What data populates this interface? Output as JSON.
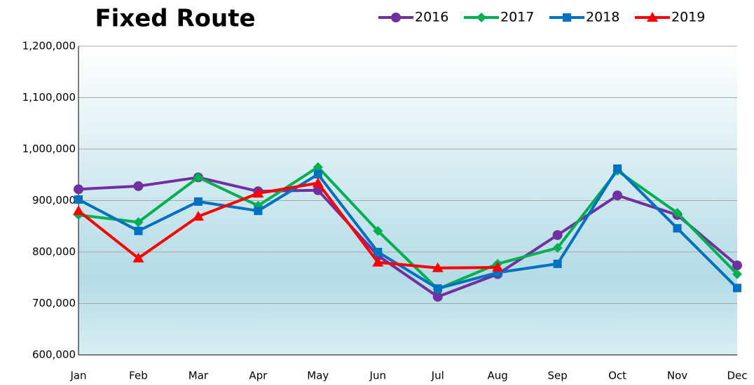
{
  "chart_data": {
    "type": "line",
    "title": "Fixed Route",
    "categories": [
      "Jan",
      "Feb",
      "Mar",
      "Apr",
      "May",
      "Jun",
      "Jul",
      "Aug",
      "Sep",
      "Oct",
      "Nov",
      "Dec"
    ],
    "series": [
      {
        "name": "2016",
        "color": "#7030a0",
        "marker": "circle",
        "values": [
          922000,
          928000,
          945000,
          918000,
          920000,
          793000,
          713000,
          757000,
          833000,
          910000,
          872000,
          774000
        ]
      },
      {
        "name": "2017",
        "color": "#00b050",
        "marker": "diamond",
        "values": [
          872000,
          858000,
          945000,
          890000,
          965000,
          841000,
          728000,
          777000,
          808000,
          958000,
          876000,
          757000
        ]
      },
      {
        "name": "2018",
        "color": "#0070c0",
        "marker": "square",
        "values": [
          902000,
          841000,
          898000,
          880000,
          951000,
          800000,
          729000,
          760000,
          777000,
          962000,
          846000,
          730000
        ]
      },
      {
        "name": "2019",
        "color": "#ff0000",
        "marker": "triangle",
        "values": [
          880000,
          788000,
          869000,
          914000,
          934000,
          780000,
          769000,
          770000,
          null,
          null,
          null,
          null
        ]
      }
    ],
    "ylim": [
      600000,
      1200000
    ],
    "yticks": [
      {
        "value": 600000,
        "label": "600,000"
      },
      {
        "value": 700000,
        "label": "700,000"
      },
      {
        "value": 800000,
        "label": "800,000"
      },
      {
        "value": 900000,
        "label": "900,000"
      },
      {
        "value": 1000000,
        "label": "1,000,000"
      },
      {
        "value": 1100000,
        "label": "1,100,000"
      },
      {
        "value": 1200000,
        "label": "1,200,000"
      }
    ],
    "grid": true,
    "legend": "top-right"
  }
}
